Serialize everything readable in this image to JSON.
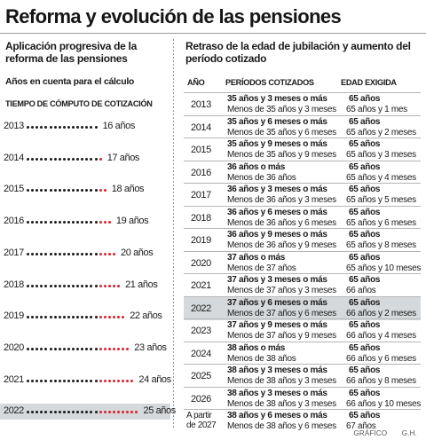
{
  "title": "Reforma y evolución de las pensiones",
  "colors": {
    "dot_base": "#1a1a1a",
    "dot_added": "#d8242e",
    "highlight": "#d6d9db"
  },
  "left": {
    "heading": "Aplicación progresiva de la reforma de las pensiones",
    "subtitle": "Años  en cuenta para el cálculo",
    "label": "TIEMPO DE CÓMPUTO DE COTIZACIÓN",
    "rows": [
      {
        "year": "2013",
        "years_count": 16,
        "added": 0,
        "value": "16  años"
      },
      {
        "year": "2014",
        "years_count": 17,
        "added": 1,
        "value": "17 años"
      },
      {
        "year": "2015",
        "years_count": 18,
        "added": 2,
        "value": "18 años"
      },
      {
        "year": "2016",
        "years_count": 19,
        "added": 3,
        "value": "19 años"
      },
      {
        "year": "2017",
        "years_count": 20,
        "added": 4,
        "value": "20 años"
      },
      {
        "year": "2018",
        "years_count": 21,
        "added": 5,
        "value": "21 años"
      },
      {
        "year": "2019",
        "years_count": 22,
        "added": 6,
        "value": "22 años"
      },
      {
        "year": "2020",
        "years_count": 23,
        "added": 7,
        "value": "23 años"
      },
      {
        "year": "2021",
        "years_count": 24,
        "added": 8,
        "value": "24 años"
      },
      {
        "year": "2022",
        "years_count": 25,
        "added": 9,
        "value": "25 años",
        "highlight": true
      }
    ]
  },
  "right": {
    "heading": "Retraso de la edad de jubilación y aumento del período cotizado",
    "col_year": "AÑO",
    "col_periods": "PERÍODOS COTIZADOS",
    "col_age": "EDAD EXIGIDA",
    "rows": [
      {
        "year": "2013",
        "p1": "35 años y 3 meses o más",
        "p2": "Menos de 35 años y 3 meses",
        "e1": "65 años",
        "e2": "65 años y 1 mes"
      },
      {
        "year": "2014",
        "p1": "35 años y 6 meses o más",
        "p2": "Menos de 35 años y 6 meses",
        "e1": "65 años",
        "e2": "65 años y 2 meses"
      },
      {
        "year": "2015",
        "p1": "35 años y 9 meses o más",
        "p2": "Menos de 35 años y 9 meses",
        "e1": "65 años",
        "e2": "65 años y 3 meses"
      },
      {
        "year": "2016",
        "p1": "36 años o más",
        "p2": "Menos de 36 años",
        "e1": "65 años",
        "e2": "65 años y 4 meses"
      },
      {
        "year": "2017",
        "p1": "36 años y 3 meses o más",
        "p2": "Menos de 36 años y 3 meses",
        "e1": "65 años",
        "e2": "65 años y 5 meses"
      },
      {
        "year": "2018",
        "p1": "36 años y 6 meses o más",
        "p2": "Menos de 36 años y 6 meses",
        "e1": "65 años",
        "e2": "65 años y 6 meses"
      },
      {
        "year": "2019",
        "p1": "36 años y 9 meses o más",
        "p2": "Menos de 36 años y 9 meses",
        "e1": "65 años",
        "e2": "65 años y 8 meses"
      },
      {
        "year": "2020",
        "p1": "37 años o más",
        "p2": "Menos de 37 años",
        "e1": "65 años",
        "e2": "65 años y 10 meses"
      },
      {
        "year": "2021",
        "p1": "37 años y 3 meses o más",
        "p2": "Menos de 37 años y 3 meses",
        "e1": "65 años",
        "e2": "66 años"
      },
      {
        "year": "2022",
        "p1": "37 años y 6 meses o más",
        "p2": "Menos de 37 años y 6 meses",
        "e1": "65 años",
        "e2": "66 años y 2 meses",
        "highlight": true
      },
      {
        "year": "2023",
        "p1": "37 años y 9 meses o más",
        "p2": "Menos de 37 años y 9 meses",
        "e1": "65 años",
        "e2": "66 años y 4 meses"
      },
      {
        "year": "2024",
        "p1": "38 años o más",
        "p2": "Menos de 38 años",
        "e1": "65 años",
        "e2": "66 años y 6 meses"
      },
      {
        "year": "2025",
        "p1": "38 años y 3 meses o más",
        "p2": "Menos de 38 años y 3 meses",
        "e1": "65 años",
        "e2": "66 años y 8 meses"
      },
      {
        "year": "2026",
        "p1": "38 años y 3 meses o más",
        "p2": "Menos de 38 años y 3 meses",
        "e1": "65 años",
        "e2": "66 años y 10 meses"
      },
      {
        "year": "A partir de 2027",
        "p1": "38 años y 6 meses o más",
        "p2": "Menos de 38 años y 6 meses",
        "e1": "65 años",
        "e2": "67 años"
      }
    ]
  },
  "footer": {
    "label": "GRÁFICO",
    "author": "G.H."
  }
}
